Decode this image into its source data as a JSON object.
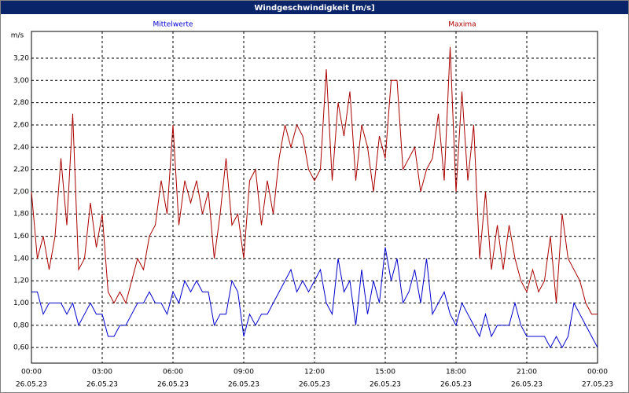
{
  "chart_data": {
    "type": "line",
    "title": "Windgeschwindigkeit [m/s]",
    "y_label": "m/s",
    "x": [
      0,
      0.25,
      0.5,
      0.75,
      1,
      1.25,
      1.5,
      1.75,
      2,
      2.25,
      2.5,
      2.75,
      3,
      3.25,
      3.5,
      3.75,
      4,
      4.25,
      4.5,
      4.75,
      5,
      5.25,
      5.5,
      5.75,
      6,
      6.25,
      6.5,
      6.75,
      7,
      7.25,
      7.5,
      7.75,
      8,
      8.25,
      8.5,
      8.75,
      9,
      9.25,
      9.5,
      9.75,
      10,
      10.25,
      10.5,
      10.75,
      11,
      11.25,
      11.5,
      11.75,
      12,
      12.25,
      12.5,
      12.75,
      13,
      13.25,
      13.5,
      13.75,
      14,
      14.25,
      14.5,
      14.75,
      15,
      15.25,
      15.5,
      15.75,
      16,
      16.25,
      16.5,
      16.75,
      17,
      17.25,
      17.5,
      17.75,
      18,
      18.25,
      18.5,
      18.75,
      19,
      19.25,
      19.5,
      19.75,
      20,
      20.25,
      20.5,
      20.75,
      21,
      21.25,
      21.5,
      21.75,
      22,
      22.25,
      22.5,
      22.75,
      23,
      23.25,
      23.5,
      23.75,
      24
    ],
    "series": [
      {
        "name": "Mittelwerte",
        "color": "#0000cc",
        "values": [
          1.1,
          1.1,
          0.9,
          1.0,
          1.0,
          1.0,
          0.9,
          1.0,
          0.8,
          0.9,
          1.0,
          0.9,
          0.9,
          0.7,
          0.7,
          0.8,
          0.8,
          0.9,
          1.0,
          1.0,
          1.1,
          1.0,
          1.0,
          0.9,
          1.1,
          1.0,
          1.2,
          1.1,
          1.2,
          1.1,
          1.1,
          0.8,
          0.9,
          0.9,
          1.2,
          1.1,
          0.7,
          0.9,
          0.8,
          0.9,
          0.9,
          1.0,
          1.1,
          1.2,
          1.3,
          1.1,
          1.2,
          1.1,
          1.2,
          1.3,
          1.0,
          0.9,
          1.4,
          1.1,
          1.2,
          0.8,
          1.3,
          0.9,
          1.2,
          1.0,
          1.5,
          1.2,
          1.4,
          1.0,
          1.1,
          1.3,
          1.0,
          1.4,
          0.9,
          1.0,
          1.1,
          0.9,
          0.8,
          1.0,
          0.9,
          0.8,
          0.7,
          0.9,
          0.7,
          0.8,
          0.8,
          0.8,
          1.0,
          0.8,
          0.7,
          0.7,
          0.7,
          0.7,
          0.6,
          0.7,
          0.6,
          0.7,
          1.0,
          0.9,
          0.8,
          0.7,
          0.6
        ]
      },
      {
        "name": "Maxima",
        "color": "#aa0000",
        "values": [
          2.0,
          1.4,
          1.6,
          1.3,
          1.6,
          2.3,
          1.7,
          2.7,
          1.3,
          1.4,
          1.9,
          1.5,
          1.8,
          1.1,
          1.0,
          1.1,
          1.0,
          1.2,
          1.4,
          1.3,
          1.6,
          1.7,
          2.1,
          1.8,
          2.6,
          1.7,
          2.1,
          1.9,
          2.1,
          1.8,
          2.0,
          1.4,
          1.8,
          2.3,
          1.7,
          1.8,
          1.4,
          2.1,
          2.2,
          1.7,
          2.1,
          1.8,
          2.3,
          2.6,
          2.4,
          2.6,
          2.5,
          2.2,
          2.1,
          2.2,
          3.1,
          2.1,
          2.8,
          2.5,
          2.9,
          2.1,
          2.6,
          2.4,
          2.0,
          2.5,
          2.3,
          3.0,
          3.0,
          2.2,
          2.3,
          2.4,
          2.0,
          2.2,
          2.3,
          2.7,
          2.1,
          3.3,
          2.0,
          2.9,
          2.1,
          2.6,
          1.4,
          2.0,
          1.3,
          1.7,
          1.3,
          1.7,
          1.4,
          1.2,
          1.1,
          1.3,
          1.1,
          1.2,
          1.6,
          1.0,
          1.8,
          1.4,
          1.3,
          1.2,
          1.0,
          0.9,
          0.9
        ]
      }
    ],
    "xlim": [
      0,
      24
    ],
    "xticks": [
      {
        "value": 0,
        "label": "00:00",
        "sublabel": "26.05.23"
      },
      {
        "value": 3,
        "label": "03:00",
        "sublabel": "26.05.23"
      },
      {
        "value": 6,
        "label": "06:00",
        "sublabel": "26.05.23"
      },
      {
        "value": 9,
        "label": "09:00",
        "sublabel": "26.05.23"
      },
      {
        "value": 12,
        "label": "12:00",
        "sublabel": "26.05.23"
      },
      {
        "value": 15,
        "label": "15:00",
        "sublabel": "26.05.23"
      },
      {
        "value": 18,
        "label": "18:00",
        "sublabel": "26.05.23"
      },
      {
        "value": 21,
        "label": "21:00",
        "sublabel": "26.05.23"
      },
      {
        "value": 24,
        "label": "00:00",
        "sublabel": "27.05.23"
      }
    ],
    "ylim": [
      0.46,
      3.44
    ],
    "yticks": [
      {
        "value": 0.6,
        "label": "0,60"
      },
      {
        "value": 0.8,
        "label": "0,80"
      },
      {
        "value": 1.0,
        "label": "1,00"
      },
      {
        "value": 1.2,
        "label": "1,20"
      },
      {
        "value": 1.4,
        "label": "1,40"
      },
      {
        "value": 1.6,
        "label": "1,60"
      },
      {
        "value": 1.8,
        "label": "1,80"
      },
      {
        "value": 2.0,
        "label": "2,00"
      },
      {
        "value": 2.2,
        "label": "2,20"
      },
      {
        "value": 2.4,
        "label": "2,40"
      },
      {
        "value": 2.6,
        "label": "2,60"
      },
      {
        "value": 2.8,
        "label": "2,80"
      },
      {
        "value": 3.0,
        "label": "3,00"
      },
      {
        "value": 3.2,
        "label": "3,20"
      }
    ],
    "grid": true
  }
}
